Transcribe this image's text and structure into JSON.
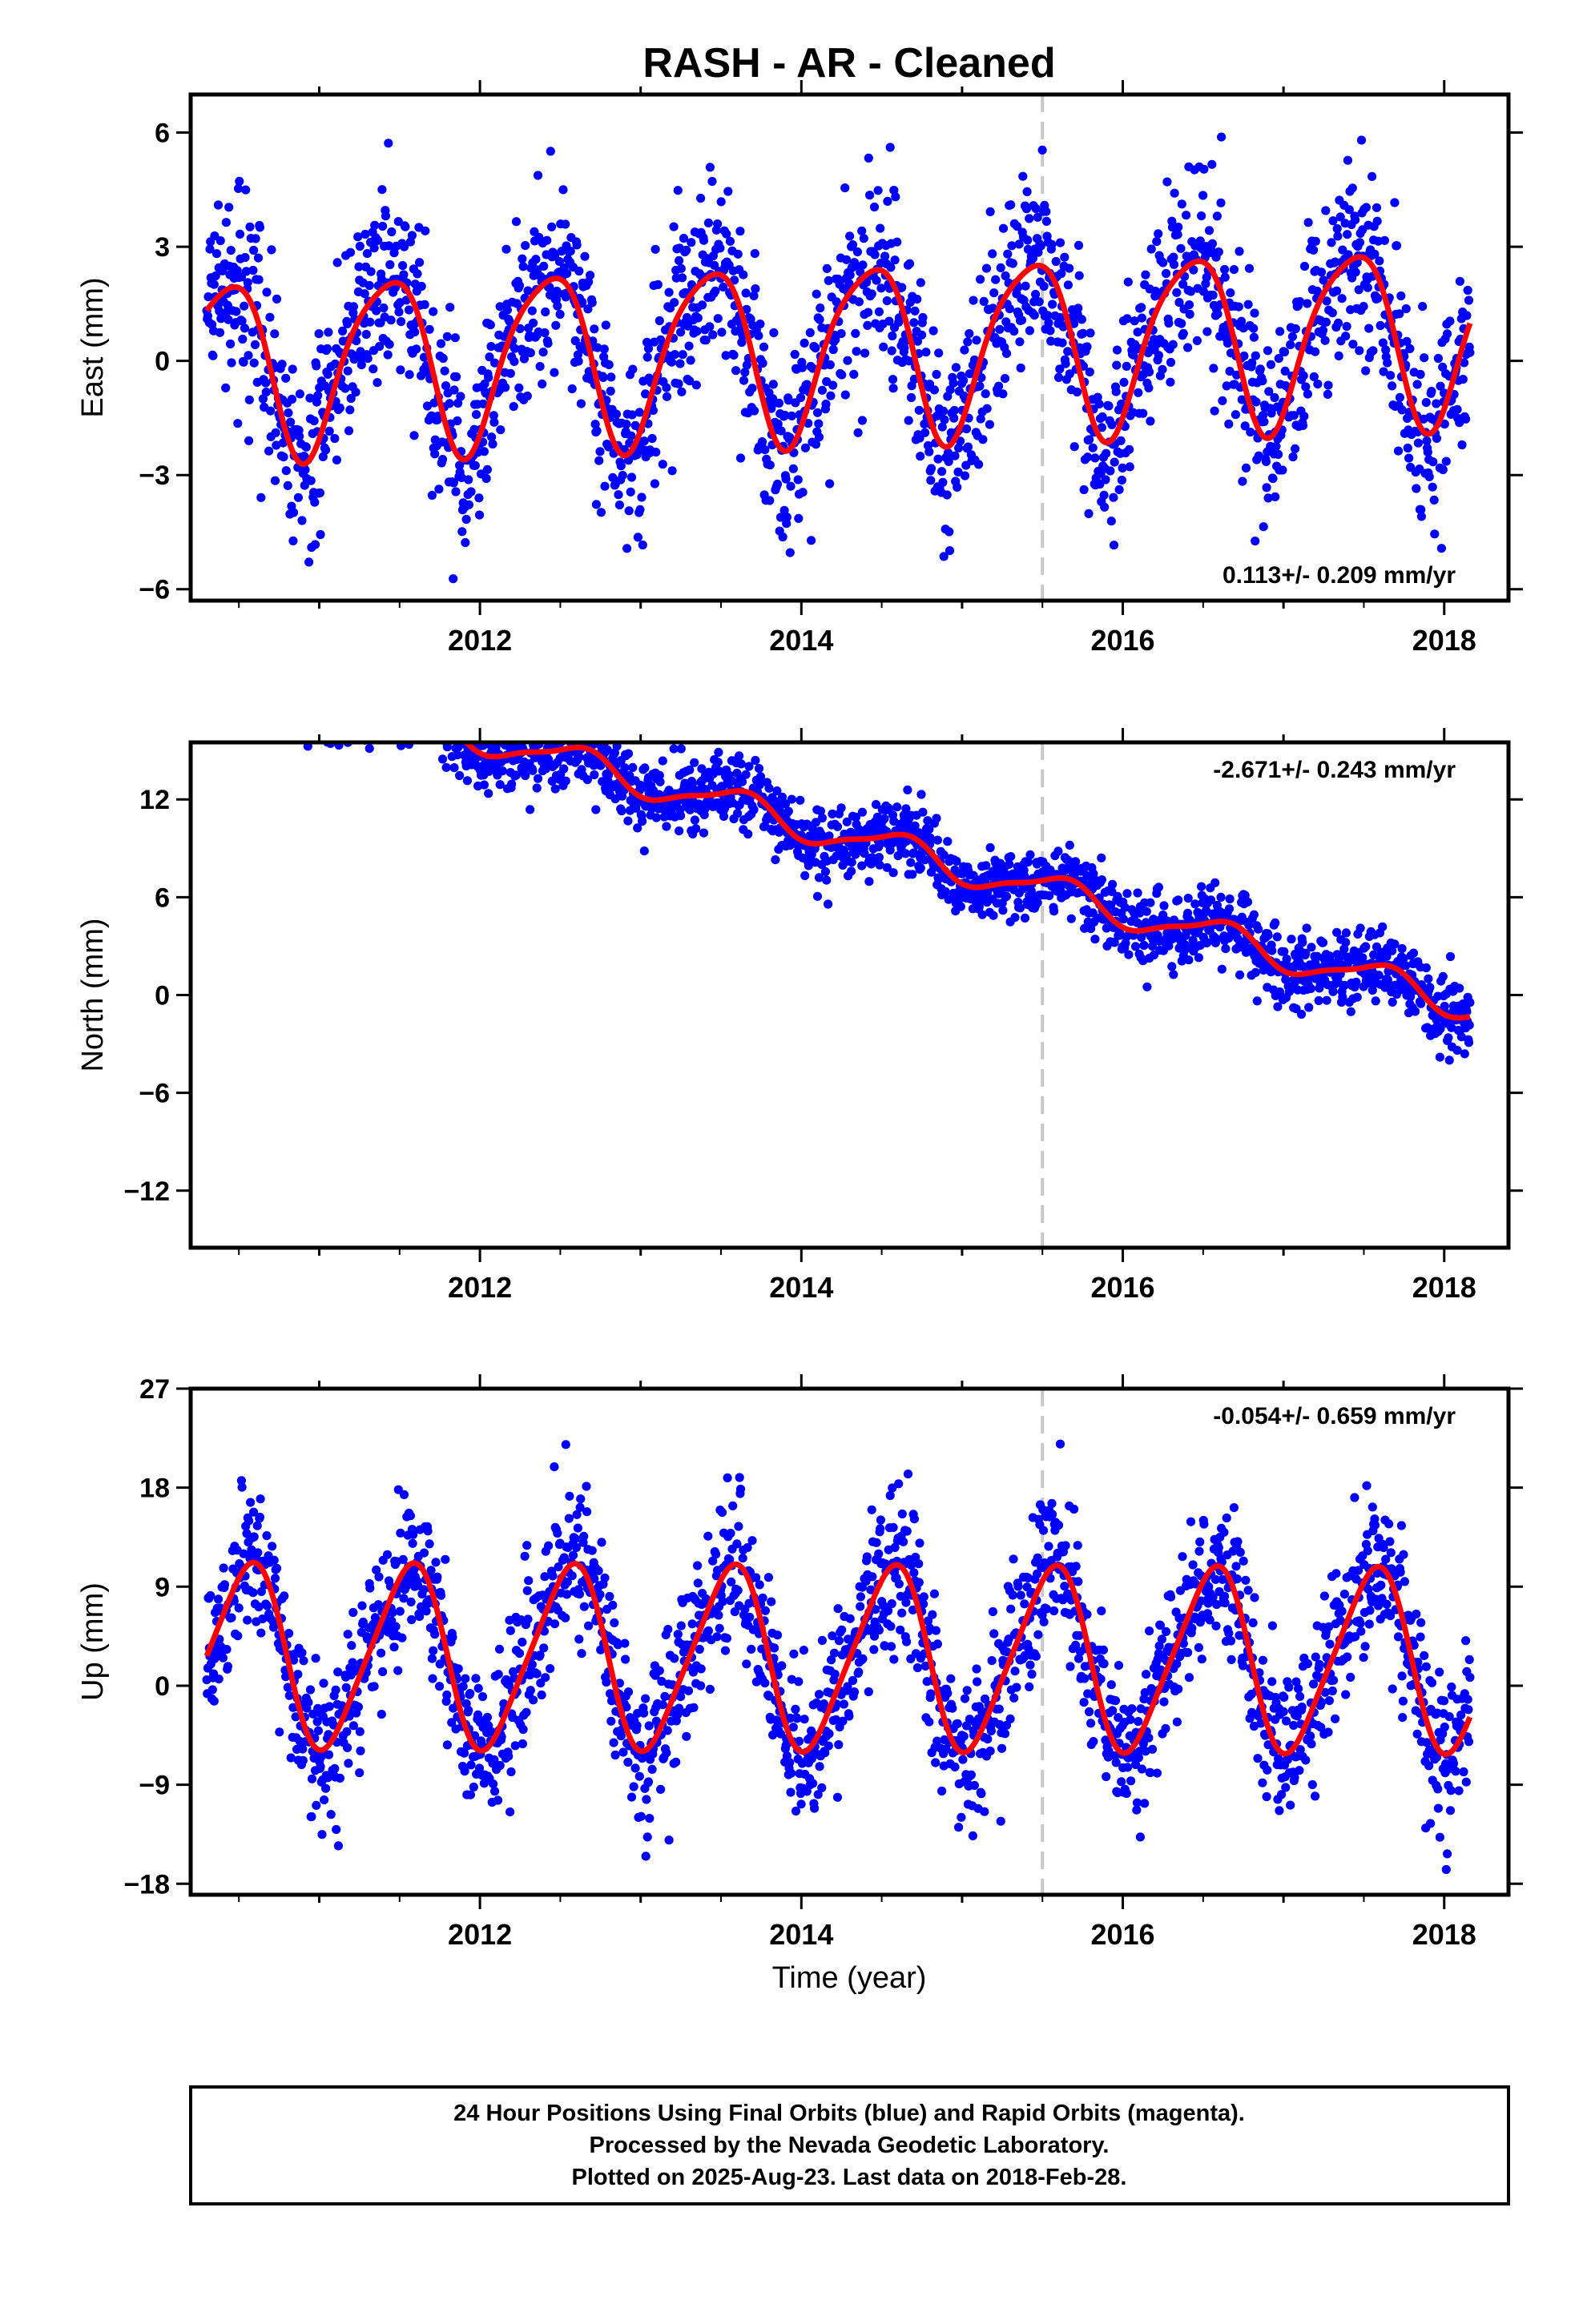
{
  "figure": {
    "title": "RASH  - AR - Cleaned",
    "xlabel": "Time (year)",
    "footer": [
      "24 Hour Positions Using Final Orbits (blue) and Rapid Orbits (magenta).",
      "Processed by the Nevada Geodetic Laboratory.",
      "Plotted on 2025-Aug-23. Last data on 2018-Feb-28."
    ],
    "colors": {
      "points": "#0000ff",
      "model": "#ff0000",
      "event_line": "#c8c8c8",
      "frame": "#000000"
    }
  },
  "chart_data": [
    {
      "type": "scatter",
      "panel": "east",
      "ylabel": "East (mm)",
      "xlim": [
        2010.2,
        2018.4
      ],
      "ylim": [
        -6.3,
        7.0
      ],
      "xticks": [
        2012,
        2014,
        2016,
        2018
      ],
      "yticks": [
        -6,
        -3,
        0,
        3,
        6
      ],
      "ytick_labels": [
        "−6",
        "−3",
        "0",
        "3",
        "6"
      ],
      "event_x": 2015.5,
      "rate_label": "0.113+/- 0.209 mm/yr",
      "rate_position": "bottom-right",
      "model": {
        "offset": 0.3,
        "trend": 0.113,
        "annual_amp": 2.3,
        "annual_phase": 0.17,
        "semi_amp": 0.4,
        "semi_phase": 0.0,
        "scatter_sd": 1.25
      },
      "start": 2010.3,
      "end": 2018.16,
      "series": [
        {
          "name": "Final Orbits (blue)",
          "role": "daily positions"
        },
        {
          "name": "",
          "role": "model fit"
        }
      ]
    },
    {
      "type": "scatter",
      "panel": "north",
      "ylabel": "North (mm)",
      "xlim": [
        2010.2,
        2018.4
      ],
      "ylim": [
        -15.5,
        15.5
      ],
      "xticks": [
        2012,
        2014,
        2016,
        2018
      ],
      "yticks": [
        -12,
        -6,
        0,
        6,
        12
      ],
      "ytick_labels": [
        "−12",
        "−6",
        "0",
        "6",
        "12"
      ],
      "event_x": 2015.5,
      "rate_label": "-2.671+/- 0.243 mm/yr",
      "rate_position": "top-right",
      "model": {
        "offset": 10.5,
        "trend": -2.671,
        "annual_amp": 0.95,
        "annual_phase": 0.35,
        "semi_amp": 0.25,
        "semi_phase": 0.1,
        "scatter_sd": 1.1
      },
      "start": 2010.3,
      "end": 2018.16,
      "series": [
        {
          "name": "Final Orbits (blue)",
          "role": "daily positions"
        },
        {
          "name": "",
          "role": "model fit"
        }
      ]
    },
    {
      "type": "scatter",
      "panel": "up",
      "ylabel": "Up (mm)",
      "xlim": [
        2010.2,
        2018.4
      ],
      "ylim": [
        -19,
        27
      ],
      "xticks": [
        2012,
        2014,
        2016,
        2018
      ],
      "yticks": [
        -18,
        -9,
        0,
        9,
        18,
        27
      ],
      "ytick_labels": [
        "−18",
        "−9",
        "0",
        "9",
        "18",
        "27"
      ],
      "event_x": 2015.5,
      "rate_label": "-0.054+/- 0.659 mm/yr",
      "rate_position": "top-right",
      "model": {
        "offset": 2.5,
        "trend": -0.054,
        "annual_amp": 8.2,
        "annual_phase": 0.3,
        "semi_amp": 1.2,
        "semi_phase": 0.05,
        "scatter_sd": 3.5
      },
      "start": 2010.3,
      "end": 2018.16,
      "series": [
        {
          "name": "Final Orbits (blue)",
          "role": "daily positions"
        },
        {
          "name": "",
          "role": "model fit"
        }
      ]
    }
  ]
}
